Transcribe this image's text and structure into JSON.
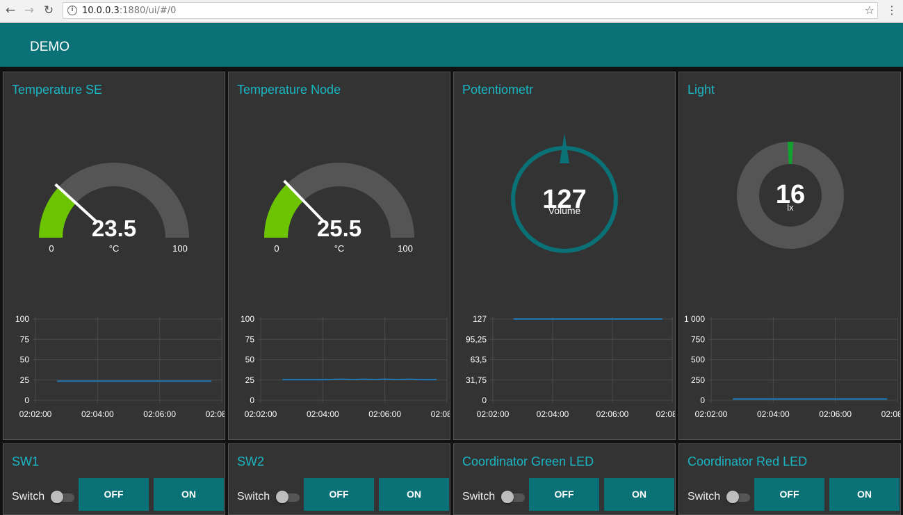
{
  "browser": {
    "back_icon": "arrow-left-icon",
    "forward_icon": "arrow-right-icon",
    "reload_icon": "reload-icon",
    "url_host": "10.0.0.3",
    "url_rest": ":1880/ui/#/0"
  },
  "header": {
    "title": "DEMO"
  },
  "colors": {
    "accent": "#0a7177",
    "title": "#1bb6c4",
    "gauge_fill": "#6cc400",
    "card": "#333333",
    "line": "#1f77b4"
  },
  "gauges": [
    {
      "title": "Temperature SE",
      "value": "23.5",
      "value_num": 23.5,
      "unit": "°C",
      "min": "0",
      "max": "100",
      "min_num": 0,
      "max_num": 100
    },
    {
      "title": "Temperature Node",
      "value": "25.5",
      "value_num": 25.5,
      "unit": "°C",
      "min": "0",
      "max": "100",
      "min_num": 0,
      "max_num": 100
    },
    {
      "title": "Potentiometr",
      "value": "127",
      "label": "Volume"
    },
    {
      "title": "Light",
      "value": "16",
      "label": "lx"
    }
  ],
  "chart_data": [
    {
      "type": "line",
      "title": "Temperature SE",
      "x": [
        "02:02:42",
        "02:07:40"
      ],
      "x_num": [
        0.7,
        5.67
      ],
      "series": [
        {
          "name": "Temperature SE",
          "values": [
            23.5,
            23.5
          ]
        }
      ],
      "yticks": [
        "0",
        "25",
        "50",
        "75",
        "100"
      ],
      "ylim": [
        0,
        100
      ],
      "xticks": [
        "02:02:00",
        "02:04:00",
        "02:06:00",
        "02:08:00"
      ],
      "xlim_min": [
        0,
        6
      ]
    },
    {
      "type": "line",
      "title": "Temperature Node",
      "x_num": [
        0.7,
        2.2,
        2.6,
        3.0,
        3.3,
        3.7,
        4.0,
        4.4,
        4.8,
        5.1,
        5.67
      ],
      "series": [
        {
          "name": "Temperature Node",
          "values": [
            25.5,
            25.5,
            26,
            25.5,
            26,
            25.5,
            26,
            25.5,
            26,
            25.5,
            25.5
          ]
        }
      ],
      "yticks": [
        "0",
        "25",
        "50",
        "75",
        "100"
      ],
      "ylim": [
        0,
        100
      ],
      "xticks": [
        "02:02:00",
        "02:04:00",
        "02:06:00",
        "02:08:00"
      ],
      "xlim_min": [
        0,
        6
      ]
    },
    {
      "type": "line",
      "title": "Potentiometr",
      "x_num": [
        0.7,
        5.67
      ],
      "series": [
        {
          "name": "Potentiometr",
          "values": [
            127,
            127
          ]
        }
      ],
      "yticks": [
        "0",
        "31,75",
        "63,5",
        "95,25",
        "127"
      ],
      "ylim": [
        0,
        127
      ],
      "xticks": [
        "02:02:00",
        "02:04:00",
        "02:06:00",
        "02:08:00"
      ],
      "xlim_min": [
        0,
        6
      ]
    },
    {
      "type": "line",
      "title": "Light",
      "x_num": [
        0.7,
        5.67
      ],
      "series": [
        {
          "name": "Light",
          "values": [
            16,
            16
          ]
        }
      ],
      "yticks": [
        "0",
        "250",
        "500",
        "750",
        "1 000"
      ],
      "ylim": [
        0,
        1000
      ],
      "xticks": [
        "02:02:00",
        "02:04:00",
        "02:06:00",
        "02:08:00"
      ],
      "xlim_min": [
        0,
        6
      ]
    }
  ],
  "switches": [
    {
      "title": "SW1",
      "label": "Switch",
      "off": "OFF",
      "on": "ON",
      "state": false
    },
    {
      "title": "SW2",
      "label": "Switch",
      "off": "OFF",
      "on": "ON",
      "state": false
    },
    {
      "title": "Coordinator Green LED",
      "label": "Switch",
      "off": "OFF",
      "on": "ON",
      "state": false
    },
    {
      "title": "Coordinator Red LED",
      "label": "Switch",
      "off": "OFF",
      "on": "ON",
      "state": false
    }
  ]
}
